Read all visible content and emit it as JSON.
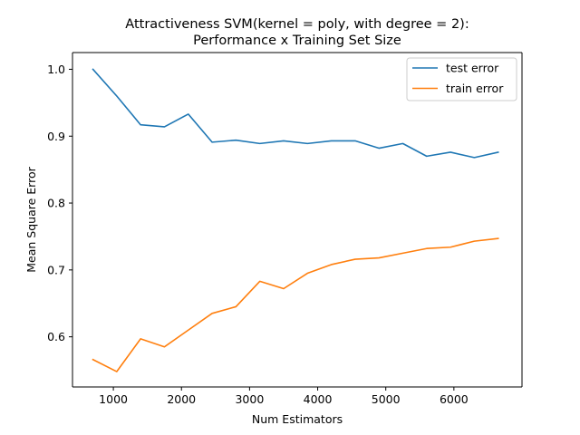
{
  "chart_data": {
    "type": "line",
    "title": "Attractiveness SVM(kernel = poly, with degree = 2):",
    "subtitle": "Performance x Training Set Size",
    "xlabel": "Num Estimators",
    "ylabel": "Mean Square Error",
    "xlim": [
      400,
      7000
    ],
    "ylim": [
      0.525,
      1.025
    ],
    "xticks": [
      1000,
      2000,
      3000,
      4000,
      5000,
      6000
    ],
    "yticks": [
      0.6,
      0.7,
      0.8,
      0.9,
      1.0
    ],
    "xtick_labels": [
      "1000",
      "2000",
      "3000",
      "4000",
      "5000",
      "6000"
    ],
    "ytick_labels": [
      "0.6",
      "0.7",
      "0.8",
      "0.9",
      "1.0"
    ],
    "grid": false,
    "legend_position": "top-right",
    "x": [
      700,
      1050,
      1400,
      1750,
      2100,
      2450,
      2800,
      3150,
      3500,
      3850,
      4200,
      4550,
      4900,
      5250,
      5600,
      5950,
      6300,
      6650
    ],
    "series": [
      {
        "name": "test error",
        "color": "#1f77b4",
        "values": [
          1.0,
          0.96,
          0.917,
          0.914,
          0.933,
          0.891,
          0.894,
          0.889,
          0.893,
          0.889,
          0.893,
          0.893,
          0.882,
          0.889,
          0.87,
          0.876,
          0.868,
          0.876
        ]
      },
      {
        "name": "train error",
        "color": "#ff7f0e",
        "values": [
          0.566,
          0.548,
          0.597,
          0.585,
          0.61,
          0.635,
          0.645,
          0.683,
          0.672,
          0.695,
          0.708,
          0.716,
          0.718,
          0.725,
          0.732,
          0.734,
          0.743,
          0.747
        ]
      }
    ]
  }
}
